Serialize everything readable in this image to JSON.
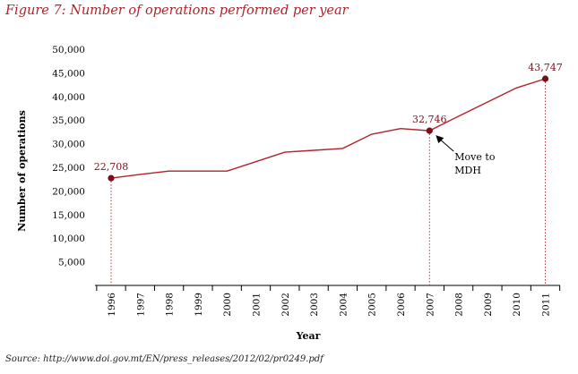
{
  "figure_title": "Figure 7: Number of operations performed per year",
  "source": "Source: http://www.doi.gov.mt/EN/press_releases/2012/02/pr0249.pdf",
  "colors": {
    "line": "#b0232a",
    "marker": "#7a0f1a",
    "title": "#b0232a",
    "axis": "#000000"
  },
  "chart_data": {
    "type": "line",
    "title": "Figure 7: Number of operations performed per year",
    "xlabel": "Year",
    "ylabel": "Number of operations",
    "ylim": [
      0,
      50000
    ],
    "yticks": [
      5000,
      10000,
      15000,
      20000,
      25000,
      30000,
      35000,
      40000,
      45000,
      50000
    ],
    "ytick_labels": [
      "5,000",
      "10,000",
      "15,000",
      "20,000",
      "25,000",
      "30,000",
      "35,000",
      "40,000",
      "45,000",
      "50,000"
    ],
    "x": [
      1996,
      1997,
      1998,
      1999,
      2000,
      2001,
      2002,
      2003,
      2004,
      2005,
      2006,
      2007,
      2008,
      2009,
      2010,
      2011
    ],
    "xtick_labels": [
      "1996",
      "1997",
      "1998",
      "1999",
      "2000",
      "2001",
      "2002",
      "2003",
      "2004",
      "2005",
      "2006",
      "2007",
      "2008",
      "2009",
      "2010",
      "2011"
    ],
    "series": [
      {
        "values": [
          22708,
          23500,
          24200,
          24200,
          24200,
          26200,
          28200,
          28600,
          29000,
          32000,
          33200,
          32746,
          35800,
          38800,
          41800,
          43747
        ]
      }
    ],
    "data_labels": [
      {
        "x": 1996,
        "y": 22708,
        "text": "22,708"
      },
      {
        "x": 2007,
        "y": 32746,
        "text": "32,746"
      },
      {
        "x": 2011,
        "y": 43747,
        "text": "43,747"
      }
    ],
    "annotations": [
      {
        "x": 2007,
        "y": 32746,
        "lines": [
          "Move to",
          "MDH"
        ]
      }
    ],
    "grid": false
  }
}
